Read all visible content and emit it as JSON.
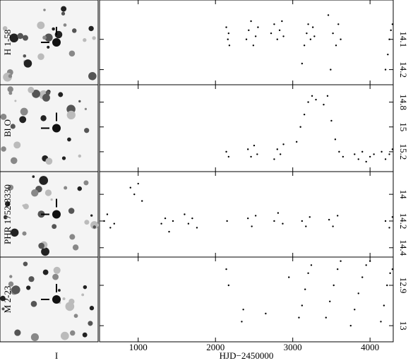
{
  "finding_chart_label": "I",
  "chart_data": [
    {
      "type": "scatter",
      "label": "H 1-58",
      "xlim": [
        500,
        4300
      ],
      "ylim": [
        14.25,
        13.97
      ],
      "yticks": [
        14.1,
        14.2
      ],
      "x": [
        2140,
        2160,
        2170,
        2180,
        2400,
        2430,
        2460,
        2490,
        2520,
        2550,
        2720,
        2760,
        2800,
        2830,
        2860,
        2880,
        3120,
        3150,
        3180,
        3200,
        3230,
        3260,
        3280,
        3460,
        3490,
        3520,
        3560,
        3590,
        3620,
        4200,
        4230,
        4250,
        4270,
        4290
      ],
      "values": [
        14.06,
        14.1,
        14.08,
        14.12,
        14.1,
        14.07,
        14.04,
        14.12,
        14.09,
        14.06,
        14.08,
        14.05,
        14.1,
        14.07,
        14.04,
        14.09,
        14.18,
        14.12,
        14.08,
        14.05,
        14.1,
        14.06,
        14.09,
        14.02,
        14.2,
        14.08,
        14.12,
        14.05,
        14.1,
        14.2,
        14.15,
        14.1,
        14.07,
        14.05
      ]
    },
    {
      "type": "scatter",
      "label": "Bl O",
      "xlim": [
        500,
        4300
      ],
      "ylim": [
        15.36,
        14.66
      ],
      "yticks": [
        14.8,
        15,
        15.2
      ],
      "x": [
        2140,
        2170,
        2420,
        2460,
        2500,
        2540,
        2760,
        2800,
        2840,
        2880,
        3050,
        3100,
        3150,
        3200,
        3250,
        3300,
        3400,
        3450,
        3500,
        3550,
        3600,
        3650,
        3800,
        3850,
        3900,
        3950,
        4000,
        4050,
        4150,
        4200,
        4250,
        4290
      ],
      "values": [
        15.2,
        15.24,
        15.18,
        15.24,
        15.15,
        15.22,
        15.26,
        15.18,
        15.22,
        15.14,
        15.12,
        15.0,
        14.9,
        14.8,
        14.75,
        14.78,
        14.82,
        14.75,
        14.95,
        15.1,
        15.2,
        15.24,
        15.22,
        15.26,
        15.2,
        15.28,
        15.24,
        15.22,
        15.2,
        15.26,
        15.22,
        15.18
      ]
    },
    {
      "type": "scatter",
      "label": "PHR 1752-3330",
      "xlim": [
        500,
        4300
      ],
      "ylim": [
        14.47,
        13.83
      ],
      "yticks": [
        14,
        14.2,
        14.4
      ],
      "x": [
        560,
        600,
        640,
        690,
        900,
        950,
        1000,
        1050,
        1300,
        1350,
        1400,
        1450,
        1600,
        1650,
        1700,
        1760,
        2150,
        2420,
        2470,
        2520,
        2760,
        2810,
        2870,
        3120,
        3170,
        3220,
        3470,
        3520,
        3580,
        4200,
        4250,
        4290
      ],
      "values": [
        14.2,
        14.15,
        14.25,
        14.22,
        13.95,
        14.0,
        13.92,
        14.05,
        14.22,
        14.18,
        14.28,
        14.2,
        14.15,
        14.22,
        14.18,
        14.25,
        14.2,
        14.18,
        14.24,
        14.16,
        14.2,
        14.14,
        14.22,
        14.2,
        14.24,
        14.17,
        14.19,
        14.24,
        14.16,
        14.2,
        14.25,
        14.17
      ]
    },
    {
      "type": "scatter",
      "label": "M 2-23",
      "xlim": [
        500,
        4300
      ],
      "ylim": [
        13.04,
        12.83
      ],
      "yticks": [
        12.9,
        13
      ],
      "xticks": [
        1000,
        2000,
        3000,
        4000
      ],
      "xlabel": "HJD−2450000",
      "x": [
        2140,
        2170,
        2340,
        2360,
        2650,
        2950,
        3080,
        3120,
        3160,
        3200,
        3240,
        3430,
        3480,
        3530,
        3580,
        3620,
        3750,
        3800,
        3850,
        3900,
        3950,
        4000,
        4140,
        4180,
        4220,
        4260,
        4290
      ],
      "values": [
        12.86,
        12.9,
        12.99,
        12.96,
        12.97,
        12.88,
        12.98,
        12.95,
        12.91,
        12.87,
        12.85,
        12.98,
        12.94,
        12.9,
        12.86,
        12.84,
        13.0,
        12.96,
        12.92,
        12.88,
        12.85,
        12.84,
        12.99,
        12.95,
        12.9,
        12.87,
        12.86
      ]
    }
  ]
}
